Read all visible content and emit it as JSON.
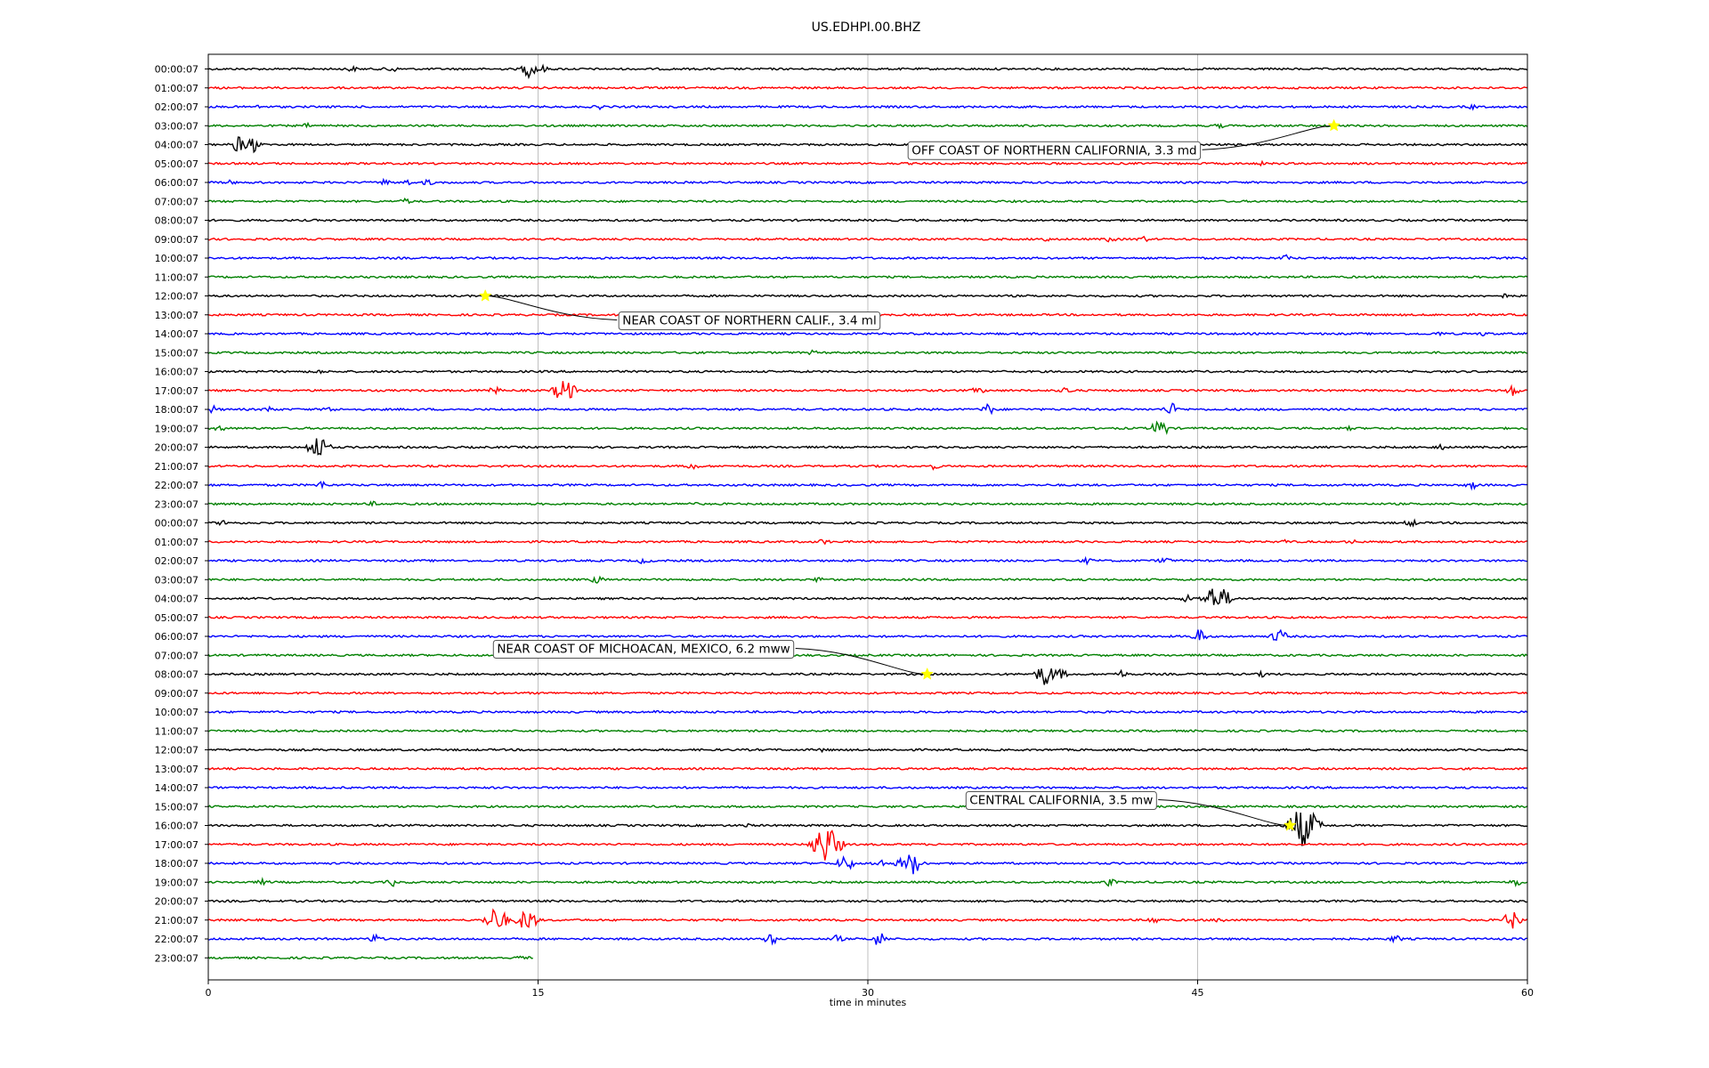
{
  "chart_data": {
    "type": "line",
    "title": "US.EDHPI.00.BHZ",
    "xlabel": "time in minutes",
    "xlim": [
      0,
      60
    ],
    "x_ticks": [
      0,
      15,
      30,
      45,
      60
    ],
    "grid": "vertical lines at x ticks",
    "trace_colors": [
      "#000000",
      "#ff0000",
      "#0000ff",
      "#008000"
    ],
    "rows": [
      {
        "label": "00:00:07",
        "bursts": [
          [
            6.5,
            3
          ],
          [
            8.3,
            4
          ],
          [
            14.6,
            9
          ],
          [
            15.1,
            5
          ]
        ]
      },
      {
        "label": "01:00:07",
        "bursts": []
      },
      {
        "label": "02:00:07",
        "bursts": [
          [
            2.4,
            2
          ],
          [
            17.8,
            2
          ],
          [
            57.5,
            2
          ]
        ]
      },
      {
        "label": "03:00:07",
        "bursts": [
          [
            4.5,
            2
          ],
          [
            46,
            2
          ]
        ]
      },
      {
        "label": "04:00:07",
        "bursts": [
          [
            1.4,
            9
          ],
          [
            2,
            9
          ]
        ]
      },
      {
        "label": "05:00:07",
        "bursts": [
          [
            48,
            2
          ]
        ]
      },
      {
        "label": "06:00:07",
        "bursts": [
          [
            1,
            2
          ],
          [
            8,
            3
          ],
          [
            9,
            3
          ],
          [
            10,
            3
          ]
        ]
      },
      {
        "label": "07:00:07",
        "bursts": [
          [
            9,
            3
          ]
        ]
      },
      {
        "label": "08:00:07",
        "bursts": []
      },
      {
        "label": "09:00:07",
        "bursts": [
          [
            38,
            3
          ],
          [
            41,
            3
          ],
          [
            42.5,
            3
          ]
        ]
      },
      {
        "label": "10:00:07",
        "bursts": [
          [
            49,
            3
          ]
        ]
      },
      {
        "label": "11:00:07",
        "bursts": []
      },
      {
        "label": "12:00:07",
        "bursts": [
          [
            59,
            2
          ]
        ]
      },
      {
        "label": "13:00:07",
        "bursts": []
      },
      {
        "label": "14:00:07",
        "bursts": [
          [
            56,
            2
          ],
          [
            58,
            2
          ]
        ]
      },
      {
        "label": "15:00:07",
        "bursts": [
          [
            27.5,
            2
          ]
        ]
      },
      {
        "label": "16:00:07",
        "bursts": [
          [
            5,
            2
          ]
        ]
      },
      {
        "label": "17:00:07",
        "bursts": [
          [
            13,
            4
          ],
          [
            16.2,
            14
          ],
          [
            35,
            4
          ],
          [
            39,
            4
          ],
          [
            59.3,
            6
          ]
        ]
      },
      {
        "label": "18:00:07",
        "bursts": [
          [
            0.2,
            4
          ],
          [
            2.8,
            3
          ],
          [
            5.5,
            3
          ],
          [
            35.5,
            6
          ],
          [
            43.8,
            7
          ]
        ]
      },
      {
        "label": "19:00:07",
        "bursts": [
          [
            0.5,
            3
          ],
          [
            43.3,
            10
          ],
          [
            52,
            2
          ]
        ]
      },
      {
        "label": "20:00:07",
        "bursts": [
          [
            5,
            14
          ],
          [
            56,
            3
          ]
        ]
      },
      {
        "label": "21:00:07",
        "bursts": [
          [
            22,
            4
          ],
          [
            33,
            3
          ]
        ]
      },
      {
        "label": "22:00:07",
        "bursts": [
          [
            5.2,
            4
          ],
          [
            57.5,
            4
          ]
        ]
      },
      {
        "label": "23:00:07",
        "bursts": [
          [
            7.5,
            2
          ],
          [
            22,
            2
          ]
        ]
      },
      {
        "label": "00:00:07",
        "bursts": [
          [
            0.7,
            3
          ],
          [
            54.7,
            4
          ]
        ]
      },
      {
        "label": "01:00:07",
        "bursts": [
          [
            28,
            3
          ],
          [
            49,
            2
          ],
          [
            52,
            2
          ]
        ]
      },
      {
        "label": "02:00:07",
        "bursts": [
          [
            19.8,
            3
          ],
          [
            40,
            3
          ],
          [
            43.5,
            4
          ]
        ]
      },
      {
        "label": "03:00:07",
        "bursts": [
          [
            17.7,
            4
          ],
          [
            27.8,
            3
          ]
        ]
      },
      {
        "label": "04:00:07",
        "bursts": [
          [
            44.5,
            4
          ],
          [
            45.7,
            14
          ],
          [
            46.2,
            10
          ]
        ]
      },
      {
        "label": "05:00:07",
        "bursts": []
      },
      {
        "label": "06:00:07",
        "bursts": [
          [
            45.1,
            8
          ],
          [
            48.7,
            8
          ]
        ]
      },
      {
        "label": "07:00:07",
        "bursts": []
      },
      {
        "label": "08:00:07",
        "bursts": [
          [
            38.1,
            13
          ],
          [
            38.8,
            5
          ],
          [
            41.5,
            4
          ],
          [
            48,
            3
          ]
        ]
      },
      {
        "label": "09:00:07",
        "bursts": []
      },
      {
        "label": "10:00:07",
        "bursts": [
          [
            20.5,
            2
          ]
        ]
      },
      {
        "label": "11:00:07",
        "bursts": []
      },
      {
        "label": "12:00:07",
        "bursts": [
          [
            28,
            2
          ]
        ]
      },
      {
        "label": "13:00:07",
        "bursts": []
      },
      {
        "label": "14:00:07",
        "bursts": []
      },
      {
        "label": "15:00:07",
        "bursts": []
      },
      {
        "label": "16:00:07",
        "bursts": [
          [
            49.8,
            24
          ],
          [
            50.2,
            10
          ],
          [
            24.5,
            2
          ]
        ]
      },
      {
        "label": "17:00:07",
        "bursts": [
          [
            28.1,
            22
          ],
          [
            27.8,
            6
          ]
        ]
      },
      {
        "label": "18:00:07",
        "bursts": [
          [
            29,
            9
          ],
          [
            30.5,
            5
          ],
          [
            31.5,
            5
          ],
          [
            32,
            13
          ]
        ]
      },
      {
        "label": "19:00:07",
        "bursts": [
          [
            2.5,
            3
          ],
          [
            8.4,
            4
          ],
          [
            41,
            4
          ],
          [
            59.5,
            4
          ]
        ]
      },
      {
        "label": "20:00:07",
        "bursts": []
      },
      {
        "label": "21:00:07",
        "bursts": [
          [
            13.1,
            15
          ],
          [
            14.5,
            13
          ],
          [
            43,
            4
          ],
          [
            46,
            3
          ],
          [
            59.3,
            10
          ]
        ]
      },
      {
        "label": "22:00:07",
        "bursts": [
          [
            7.6,
            5
          ],
          [
            25.6,
            6
          ],
          [
            28.6,
            4
          ],
          [
            30.5,
            8
          ],
          [
            54,
            4
          ]
        ]
      },
      {
        "label": "23:00:07",
        "bursts": [
          [
            14.3,
            3
          ]
        ],
        "end_minute": 14.8
      }
    ],
    "annotations": [
      {
        "text": "OFF COAST OF NORTHERN CALIFORNIA, 3.3 md",
        "row": 3,
        "minute": 51.2
      },
      {
        "text": "NEAR COAST OF NORTHERN CALIF., 3.4 ml",
        "row": 12,
        "minute": 12.6
      },
      {
        "text": "NEAR COAST OF MICHOACAN, MEXICO, 6.2 mww",
        "row": 32,
        "minute": 32.7
      },
      {
        "text": "CENTRAL CALIFORNIA, 3.5 mw",
        "row": 40,
        "minute": 49.2
      }
    ],
    "marker_color": "#ffff00"
  }
}
